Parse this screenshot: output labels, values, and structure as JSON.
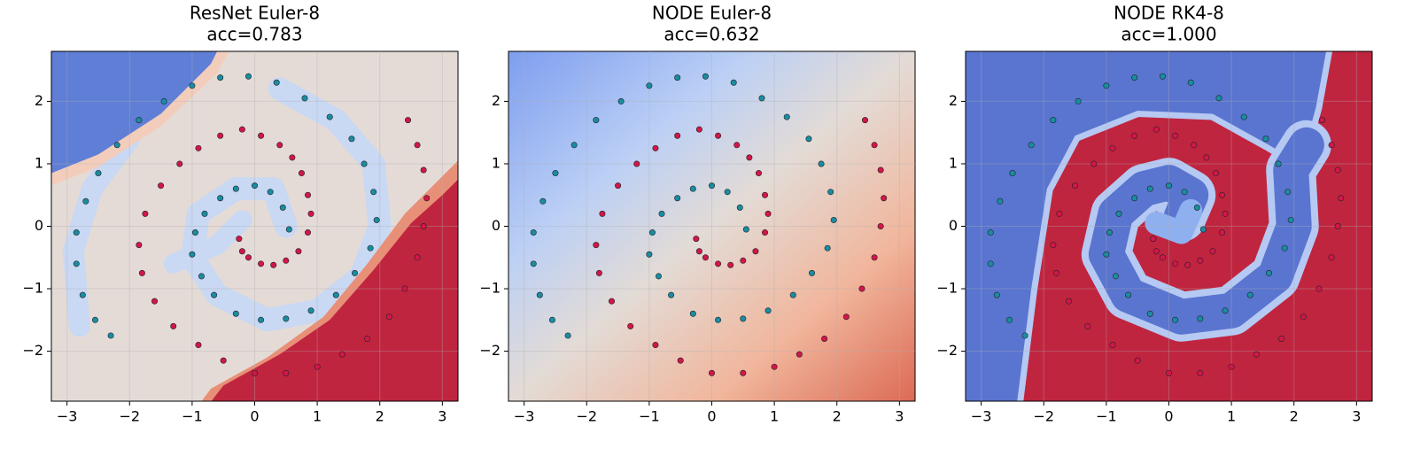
{
  "chart_data": [
    {
      "type": "scatter",
      "title": "ResNet Euler-8",
      "subtitle": "acc=0.783",
      "xlim": [
        -3.25,
        3.25
      ],
      "ylim": [
        -2.8,
        2.8
      ],
      "xticks": [
        {
          "value": -3,
          "label": "−3"
        },
        {
          "value": -2,
          "label": "−2"
        },
        {
          "value": -1,
          "label": "−1"
        },
        0,
        1,
        2,
        3
      ],
      "yticks": [
        {
          "value": -2,
          "label": "−2"
        },
        {
          "value": -1,
          "label": "−1"
        },
        0,
        1,
        2
      ],
      "grid": true,
      "series": [
        {
          "color": "#d2164a",
          "x": [
            -0.25,
            -0.2,
            -0.1,
            0.1,
            0.3,
            0.5,
            0.7,
            0.85,
            0.9,
            0.85,
            0.75,
            0.6,
            0.4,
            0.1,
            -0.2,
            -0.55,
            -0.9,
            -1.2,
            -1.5,
            -1.75,
            -1.85,
            -1.8,
            -1.6,
            -1.3,
            -0.9,
            -0.5,
            0,
            0.5,
            1.0,
            1.4,
            1.8,
            2.15,
            2.4,
            2.6,
            2.7,
            2.75,
            2.7,
            2.6,
            2.45
          ],
          "values": [
            -0.2,
            -0.4,
            -0.5,
            -0.6,
            -0.62,
            -0.55,
            -0.4,
            -0.1,
            0.2,
            0.5,
            0.85,
            1.1,
            1.3,
            1.45,
            1.55,
            1.45,
            1.25,
            1.0,
            0.65,
            0.2,
            -0.3,
            -0.75,
            -1.2,
            -1.6,
            -1.9,
            -2.15,
            -2.35,
            -2.35,
            -2.25,
            -2.05,
            -1.8,
            -1.45,
            -1.0,
            -0.5,
            0,
            0.45,
            0.9,
            1.3,
            1.7
          ]
        },
        {
          "color": "#1a8ca2",
          "x": [
            0.55,
            0.45,
            0.25,
            0,
            -0.3,
            -0.55,
            -0.8,
            -0.95,
            -1.0,
            -0.85,
            -0.65,
            -0.3,
            0.1,
            0.5,
            0.9,
            1.3,
            1.6,
            1.85,
            1.95,
            1.9,
            1.75,
            1.55,
            1.2,
            0.8,
            0.35,
            -0.1,
            -0.55,
            -1.0,
            -1.45,
            -1.85,
            -2.2,
            -2.5,
            -2.7,
            -2.85,
            -2.85,
            -2.75,
            -2.55,
            -2.3
          ],
          "values": [
            -0.05,
            0.3,
            0.55,
            0.65,
            0.6,
            0.45,
            0.2,
            -0.1,
            -0.45,
            -0.8,
            -1.1,
            -1.4,
            -1.5,
            -1.48,
            -1.35,
            -1.1,
            -0.75,
            -0.35,
            0.1,
            0.55,
            1.0,
            1.4,
            1.75,
            2.05,
            2.3,
            2.4,
            2.38,
            2.25,
            2.0,
            1.7,
            1.3,
            0.85,
            0.4,
            -0.1,
            -0.6,
            -1.1,
            -1.5,
            -1.75
          ]
        }
      ]
    },
    {
      "type": "scatter",
      "title": "NODE Euler-8",
      "subtitle": "acc=0.632",
      "xlim": [
        -3.25,
        3.25
      ],
      "ylim": [
        -2.8,
        2.8
      ],
      "xticks": [
        {
          "value": -3,
          "label": "−3"
        },
        {
          "value": -2,
          "label": "−2"
        },
        {
          "value": -1,
          "label": "−1"
        },
        0,
        1,
        2,
        3
      ],
      "yticks": [
        {
          "value": -2,
          "label": "−2"
        },
        {
          "value": -1,
          "label": "−1"
        },
        0,
        1,
        2
      ],
      "grid": true,
      "series": [
        {
          "color": "#d2164a",
          "x": [
            -0.25,
            -0.2,
            -0.1,
            0.1,
            0.3,
            0.5,
            0.7,
            0.85,
            0.9,
            0.85,
            0.75,
            0.6,
            0.4,
            0.1,
            -0.2,
            -0.55,
            -0.9,
            -1.2,
            -1.5,
            -1.75,
            -1.85,
            -1.8,
            -1.6,
            -1.3,
            -0.9,
            -0.5,
            0,
            0.5,
            1.0,
            1.4,
            1.8,
            2.15,
            2.4,
            2.6,
            2.7,
            2.75,
            2.7,
            2.6,
            2.45
          ],
          "values": [
            -0.2,
            -0.4,
            -0.5,
            -0.6,
            -0.62,
            -0.55,
            -0.4,
            -0.1,
            0.2,
            0.5,
            0.85,
            1.1,
            1.3,
            1.45,
            1.55,
            1.45,
            1.25,
            1.0,
            0.65,
            0.2,
            -0.3,
            -0.75,
            -1.2,
            -1.6,
            -1.9,
            -2.15,
            -2.35,
            -2.35,
            -2.25,
            -2.05,
            -1.8,
            -1.45,
            -1.0,
            -0.5,
            0,
            0.45,
            0.9,
            1.3,
            1.7
          ]
        },
        {
          "color": "#1a8ca2",
          "x": [
            0.55,
            0.45,
            0.25,
            0,
            -0.3,
            -0.55,
            -0.8,
            -0.95,
            -1.0,
            -0.85,
            -0.65,
            -0.3,
            0.1,
            0.5,
            0.9,
            1.3,
            1.6,
            1.85,
            1.95,
            1.9,
            1.75,
            1.55,
            1.2,
            0.8,
            0.35,
            -0.1,
            -0.55,
            -1.0,
            -1.45,
            -1.85,
            -2.2,
            -2.5,
            -2.7,
            -2.85,
            -2.85,
            -2.75,
            -2.55,
            -2.3
          ],
          "values": [
            -0.05,
            0.3,
            0.55,
            0.65,
            0.6,
            0.45,
            0.2,
            -0.1,
            -0.45,
            -0.8,
            -1.1,
            -1.4,
            -1.5,
            -1.48,
            -1.35,
            -1.1,
            -0.75,
            -0.35,
            0.1,
            0.55,
            1.0,
            1.4,
            1.75,
            2.05,
            2.3,
            2.4,
            2.38,
            2.25,
            2.0,
            1.7,
            1.3,
            0.85,
            0.4,
            -0.1,
            -0.6,
            -1.1,
            -1.5,
            -1.75
          ]
        }
      ]
    },
    {
      "type": "scatter",
      "title": "NODE RK4-8",
      "subtitle": "acc=1.000",
      "xlim": [
        -3.25,
        3.25
      ],
      "ylim": [
        -2.8,
        2.8
      ],
      "xticks": [
        {
          "value": -3,
          "label": "−3"
        },
        {
          "value": -2,
          "label": "−2"
        },
        {
          "value": -1,
          "label": "−1"
        },
        0,
        1,
        2,
        3
      ],
      "yticks": [
        {
          "value": -2,
          "label": "−2"
        },
        {
          "value": -1,
          "label": "−1"
        },
        0,
        1,
        2
      ],
      "grid": true,
      "series": [
        {
          "color": "#d2164a",
          "x": [
            -0.25,
            -0.2,
            -0.1,
            0.1,
            0.3,
            0.5,
            0.7,
            0.85,
            0.9,
            0.85,
            0.75,
            0.6,
            0.4,
            0.1,
            -0.2,
            -0.55,
            -0.9,
            -1.2,
            -1.5,
            -1.75,
            -1.85,
            -1.8,
            -1.6,
            -1.3,
            -0.9,
            -0.5,
            0,
            0.5,
            1.0,
            1.4,
            1.8,
            2.15,
            2.4,
            2.6,
            2.7,
            2.75,
            2.7,
            2.6,
            2.45
          ],
          "values": [
            -0.2,
            -0.4,
            -0.5,
            -0.6,
            -0.62,
            -0.55,
            -0.4,
            -0.1,
            0.2,
            0.5,
            0.85,
            1.1,
            1.3,
            1.45,
            1.55,
            1.45,
            1.25,
            1.0,
            0.65,
            0.2,
            -0.3,
            -0.75,
            -1.2,
            -1.6,
            -1.9,
            -2.15,
            -2.35,
            -2.35,
            -2.25,
            -2.05,
            -1.8,
            -1.45,
            -1.0,
            -0.5,
            0,
            0.45,
            0.9,
            1.3,
            1.7
          ]
        },
        {
          "color": "#1a8ca2",
          "x": [
            0.55,
            0.45,
            0.25,
            0,
            -0.3,
            -0.55,
            -0.8,
            -0.95,
            -1.0,
            -0.85,
            -0.65,
            -0.3,
            0.1,
            0.5,
            0.9,
            1.3,
            1.6,
            1.85,
            1.95,
            1.9,
            1.75,
            1.55,
            1.2,
            0.8,
            0.35,
            -0.1,
            -0.55,
            -1.0,
            -1.45,
            -1.85,
            -2.2,
            -2.5,
            -2.7,
            -2.85,
            -2.85,
            -2.75,
            -2.55,
            -2.3
          ],
          "values": [
            -0.05,
            0.3,
            0.55,
            0.65,
            0.6,
            0.45,
            0.2,
            -0.1,
            -0.45,
            -0.8,
            -1.1,
            -1.4,
            -1.5,
            -1.48,
            -1.35,
            -1.1,
            -0.75,
            -0.35,
            0.1,
            0.55,
            1.0,
            1.4,
            1.75,
            2.05,
            2.3,
            2.4,
            2.38,
            2.25,
            2.0,
            1.7,
            1.3,
            0.85,
            0.4,
            -0.1,
            -0.6,
            -1.1,
            -1.5,
            -1.75
          ]
        }
      ]
    }
  ]
}
